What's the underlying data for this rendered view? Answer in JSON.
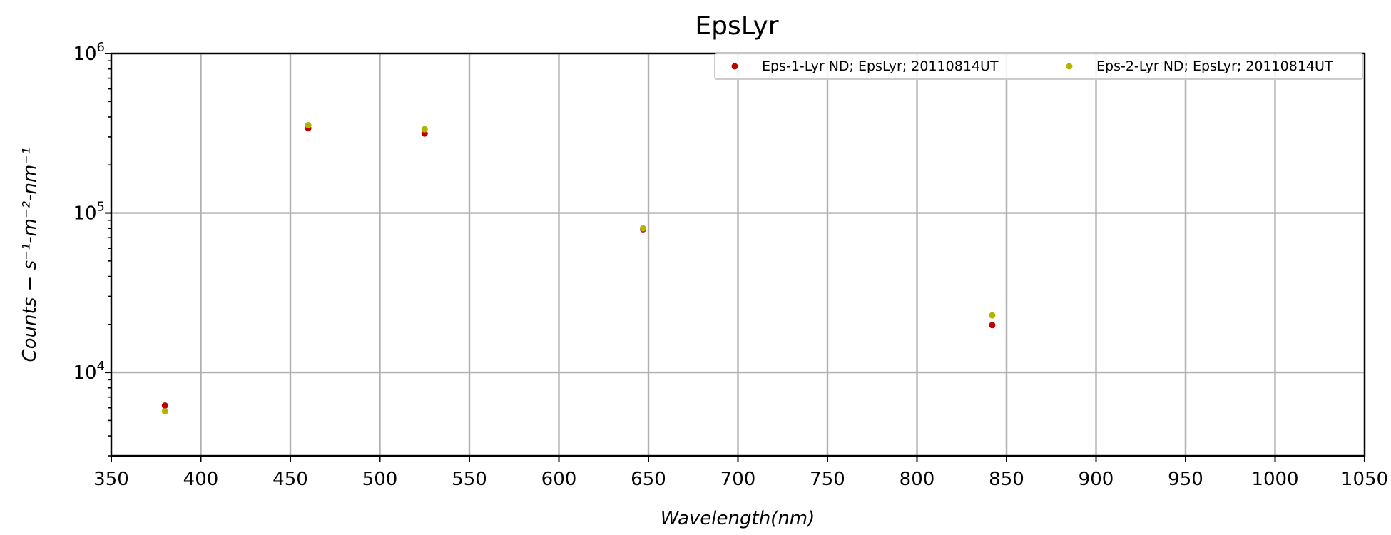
{
  "chart_data": {
    "type": "scatter",
    "title": "EpsLyr",
    "xlabel": "Wavelength(nm)",
    "ylabel": "Counts − s⁻¹-m⁻²-nm⁻¹",
    "xlim": [
      350,
      1050
    ],
    "ylim": [
      3000,
      1000000
    ],
    "yscale": "log",
    "grid": true,
    "legend_position": "top-right",
    "x_ticks": [
      "350",
      "400",
      "450",
      "500",
      "550",
      "600",
      "650",
      "700",
      "750",
      "800",
      "850",
      "900",
      "950",
      "1000",
      "1050"
    ],
    "y_ticks": [
      {
        "value": 10000,
        "base": "10",
        "exp": "4"
      },
      {
        "value": 100000,
        "base": "10",
        "exp": "5"
      },
      {
        "value": 1000000,
        "base": "10",
        "exp": "6"
      }
    ],
    "series": [
      {
        "name": "Eps-1-Lyr ND; EpsLyr; 20110814UT",
        "color": "#c00000",
        "x": [
          380,
          460,
          525,
          647,
          842
        ],
        "y": [
          6200,
          340000,
          315000,
          79000,
          19800
        ]
      },
      {
        "name": "Eps-2-Lyr ND; EpsLyr; 20110814UT",
        "color": "#b3b300",
        "x": [
          380,
          460,
          525,
          647,
          842
        ],
        "y": [
          5700,
          355000,
          335000,
          80000,
          22800
        ]
      }
    ]
  }
}
